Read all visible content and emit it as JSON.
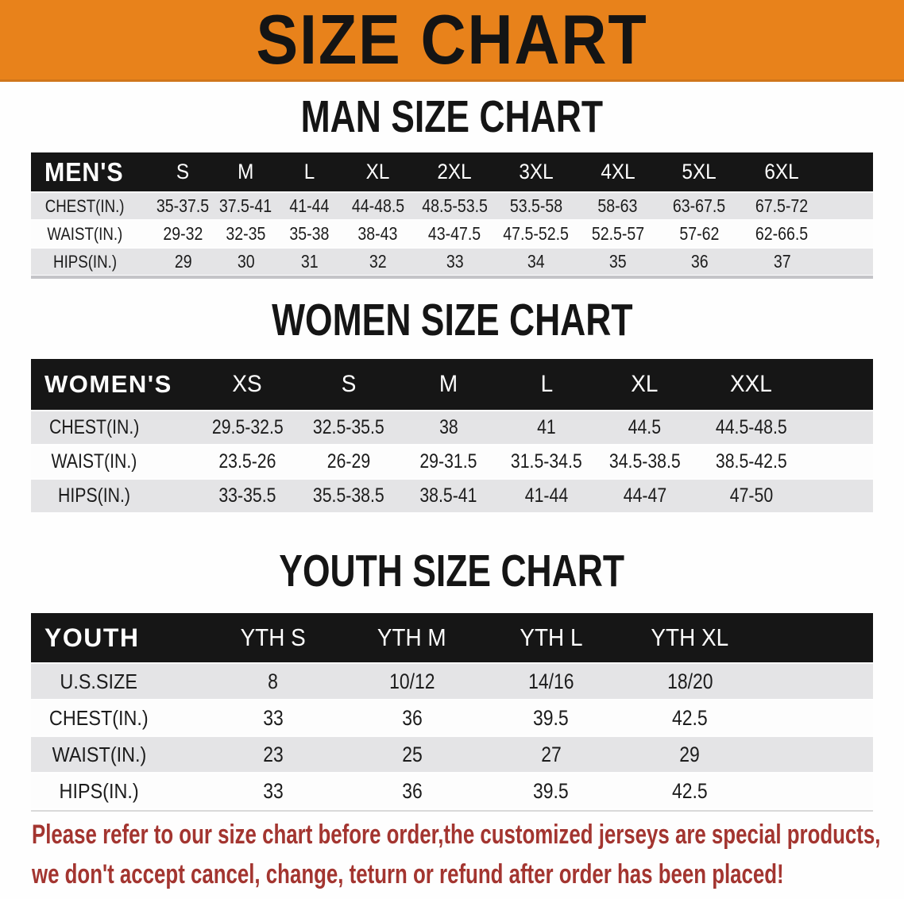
{
  "banner": {
    "title": "SIZE CHART",
    "bg_color": "#E8821B",
    "text_color": "#141414"
  },
  "sections": [
    {
      "heading": "MAN SIZE CHART"
    },
    {
      "heading": "WOMEN SIZE CHART"
    },
    {
      "heading": "YOUTH SIZE CHART"
    }
  ],
  "chart_data": [
    {
      "type": "table",
      "title": "MAN SIZE CHART",
      "header": [
        "MEN'S",
        "S",
        "M",
        "L",
        "XL",
        "2XL",
        "3XL",
        "4XL",
        "5XL",
        "6XL"
      ],
      "rows": [
        [
          "CHEST(IN.)",
          "35-37.5",
          "37.5-41",
          "41-44",
          "44-48.5",
          "48.5-53.5",
          "53.5-58",
          "58-63",
          "63-67.5",
          "67.5-72"
        ],
        [
          "WAIST(IN.)",
          "29-32",
          "32-35",
          "35-38",
          "38-43",
          "43-47.5",
          "47.5-52.5",
          "52.5-57",
          "57-62",
          "62-66.5"
        ],
        [
          "HIPS(IN.)",
          "29",
          "30",
          "31",
          "32",
          "33",
          "34",
          "35",
          "36",
          "37"
        ]
      ]
    },
    {
      "type": "table",
      "title": "WOMEN SIZE CHART",
      "header": [
        "WOMEN'S",
        "XS",
        "S",
        "M",
        "L",
        "XL",
        "XXL"
      ],
      "rows": [
        [
          "CHEST(IN.)",
          "29.5-32.5",
          "32.5-35.5",
          "38",
          "41",
          "44.5",
          "44.5-48.5"
        ],
        [
          "WAIST(IN.)",
          "23.5-26",
          "26-29",
          "29-31.5",
          "31.5-34.5",
          "34.5-38.5",
          "38.5-42.5"
        ],
        [
          "HIPS(IN.)",
          "33-35.5",
          "35.5-38.5",
          "38.5-41",
          "41-44",
          "44-47",
          "47-50"
        ]
      ]
    },
    {
      "type": "table",
      "title": "YOUTH SIZE CHART",
      "header": [
        "YOUTH",
        "YTH S",
        "YTH M",
        "YTH L",
        "YTH XL"
      ],
      "rows": [
        [
          "U.S.SIZE",
          "8",
          "10/12",
          "14/16",
          "18/20"
        ],
        [
          "CHEST(IN.)",
          "33",
          "36",
          "39.5",
          "42.5"
        ],
        [
          "WAIST(IN.)",
          "23",
          "25",
          "27",
          "29"
        ],
        [
          "HIPS(IN.)",
          "33",
          "36",
          "39.5",
          "42.5"
        ]
      ]
    }
  ],
  "footer": {
    "lines": [
      "Please refer to our size chart before order,the customized jerseys are special products,",
      "we don't accept cancel, change, teturn or refund after order has been placed!"
    ],
    "color": "#A33530"
  },
  "colors": {
    "banner_orange": "#E8821B",
    "header_black": "#161616",
    "row_gray": "#E4E4E6",
    "notice_red": "#A33530"
  }
}
